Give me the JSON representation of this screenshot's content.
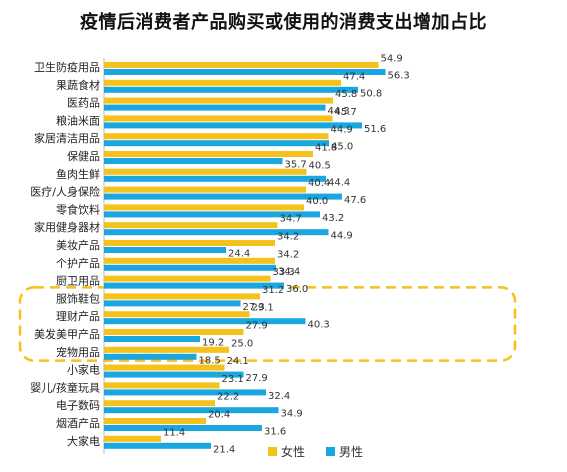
{
  "chart_data": {
    "type": "bar",
    "orientation": "horizontal",
    "title": "疫情后消费者产品购买或使用的消费支出增加占比",
    "categories": [
      "卫生防疫用品",
      "果蔬食材",
      "医药品",
      "粮油米面",
      "家居清洁用品",
      "保健品",
      "鱼肉生鲜",
      "医疗/人身保险",
      "零食饮料",
      "家用健身器材",
      "美妆产品",
      "个护产品",
      "厨卫用品",
      "服饰鞋包",
      "理财产品",
      "美发美甲产品",
      "宠物用品",
      "小家电",
      "婴儿/孩童玩具",
      "电子数码",
      "烟酒产品",
      "大家电"
    ],
    "series": [
      {
        "name": "女性",
        "color": "#f5c11b",
        "values": [
          54.9,
          47.4,
          45.8,
          45.7,
          44.9,
          41.8,
          40.5,
          40.4,
          40.0,
          34.7,
          34.2,
          34.2,
          33.3,
          31.2,
          29.1,
          27.9,
          25.0,
          24.1,
          23.1,
          22.2,
          20.4,
          11.4
        ]
      },
      {
        "name": "男性",
        "color": "#1aa7df",
        "values": [
          56.3,
          50.8,
          44.3,
          51.6,
          45.0,
          35.7,
          44.4,
          47.6,
          43.2,
          44.9,
          24.4,
          34.4,
          36.0,
          27.3,
          40.3,
          19.2,
          18.5,
          27.9,
          32.4,
          34.9,
          31.6,
          21.4
        ]
      }
    ],
    "xlim": [
      0,
      60
    ],
    "legend_position": "bottom-right",
    "highlight_categories": [
      "服饰鞋包",
      "理财产品",
      "美发美甲产品",
      "宠物用品"
    ],
    "highlight_color": "#f5c11b"
  }
}
